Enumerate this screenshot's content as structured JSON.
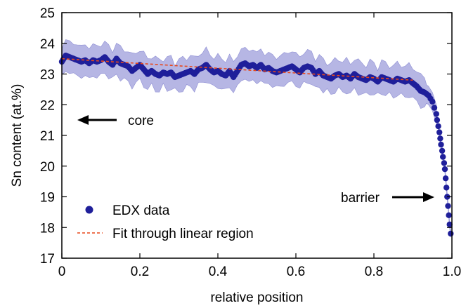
{
  "chart_data": {
    "type": "scatter",
    "title": "",
    "xlabel": "relative position",
    "ylabel": "Sn content (at.%)",
    "xlim": [
      0,
      1
    ],
    "ylim": [
      17,
      25
    ],
    "xticks": [
      "0",
      "0.2",
      "0.4",
      "0.6",
      "0.8",
      "1.0"
    ],
    "xtick_values": [
      0,
      0.2,
      0.4,
      0.6,
      0.8,
      1.0
    ],
    "yticks": [
      "17",
      "18",
      "19",
      "20",
      "21",
      "22",
      "23",
      "24",
      "25"
    ],
    "ytick_values": [
      17,
      18,
      19,
      20,
      21,
      22,
      23,
      24,
      25
    ],
    "grid": false,
    "legend_position": "bottom-left",
    "colors": {
      "points": "#1f1f9a",
      "band": "#9d9ddb",
      "fit": "#e8481c",
      "axes": "#000000"
    },
    "series": [
      {
        "name": "EDX data",
        "style": "points with shaded error band",
        "points": [
          [
            0.0,
            23.4
          ],
          [
            0.01,
            23.6
          ],
          [
            0.02,
            23.55
          ],
          [
            0.03,
            23.5
          ],
          [
            0.04,
            23.45
          ],
          [
            0.05,
            23.4
          ],
          [
            0.06,
            23.45
          ],
          [
            0.07,
            23.35
          ],
          [
            0.08,
            23.45
          ],
          [
            0.09,
            23.4
          ],
          [
            0.1,
            23.45
          ],
          [
            0.11,
            23.55
          ],
          [
            0.12,
            23.4
          ],
          [
            0.13,
            23.3
          ],
          [
            0.14,
            23.5
          ],
          [
            0.15,
            23.35
          ],
          [
            0.16,
            23.3
          ],
          [
            0.17,
            23.25
          ],
          [
            0.18,
            23.1
          ],
          [
            0.19,
            23.2
          ],
          [
            0.2,
            23.3
          ],
          [
            0.21,
            23.15
          ],
          [
            0.22,
            23.0
          ],
          [
            0.23,
            23.1
          ],
          [
            0.24,
            23.0
          ],
          [
            0.25,
            22.95
          ],
          [
            0.26,
            23.05
          ],
          [
            0.27,
            23.0
          ],
          [
            0.28,
            23.05
          ],
          [
            0.29,
            22.9
          ],
          [
            0.3,
            22.95
          ],
          [
            0.31,
            23.0
          ],
          [
            0.32,
            23.05
          ],
          [
            0.33,
            23.1
          ],
          [
            0.34,
            23.0
          ],
          [
            0.35,
            23.15
          ],
          [
            0.36,
            23.2
          ],
          [
            0.37,
            23.3
          ],
          [
            0.38,
            23.15
          ],
          [
            0.39,
            23.05
          ],
          [
            0.4,
            23.1
          ],
          [
            0.41,
            23.0
          ],
          [
            0.42,
            22.95
          ],
          [
            0.43,
            23.1
          ],
          [
            0.44,
            22.9
          ],
          [
            0.45,
            23.1
          ],
          [
            0.46,
            23.3
          ],
          [
            0.47,
            23.35
          ],
          [
            0.48,
            23.25
          ],
          [
            0.49,
            23.3
          ],
          [
            0.5,
            23.2
          ],
          [
            0.51,
            23.3
          ],
          [
            0.52,
            23.15
          ],
          [
            0.53,
            23.2
          ],
          [
            0.54,
            23.1
          ],
          [
            0.55,
            23.05
          ],
          [
            0.56,
            23.1
          ],
          [
            0.57,
            23.15
          ],
          [
            0.58,
            23.2
          ],
          [
            0.59,
            23.25
          ],
          [
            0.6,
            23.15
          ],
          [
            0.61,
            23.05
          ],
          [
            0.62,
            23.2
          ],
          [
            0.63,
            23.25
          ],
          [
            0.64,
            23.2
          ],
          [
            0.65,
            23.0
          ],
          [
            0.66,
            23.1
          ],
          [
            0.67,
            22.95
          ],
          [
            0.68,
            22.9
          ],
          [
            0.69,
            22.85
          ],
          [
            0.7,
            22.95
          ],
          [
            0.71,
            23.0
          ],
          [
            0.72,
            22.9
          ],
          [
            0.73,
            22.95
          ],
          [
            0.74,
            22.85
          ],
          [
            0.75,
            23.0
          ],
          [
            0.76,
            22.9
          ],
          [
            0.77,
            22.85
          ],
          [
            0.78,
            22.8
          ],
          [
            0.79,
            22.9
          ],
          [
            0.8,
            22.85
          ],
          [
            0.81,
            22.75
          ],
          [
            0.82,
            22.9
          ],
          [
            0.83,
            22.85
          ],
          [
            0.84,
            22.8
          ],
          [
            0.85,
            22.75
          ],
          [
            0.86,
            22.85
          ],
          [
            0.87,
            22.8
          ],
          [
            0.88,
            22.75
          ],
          [
            0.89,
            22.8
          ],
          [
            0.9,
            22.7
          ],
          [
            0.91,
            22.6
          ],
          [
            0.92,
            22.45
          ],
          [
            0.93,
            22.4
          ],
          [
            0.935,
            22.35
          ],
          [
            0.94,
            22.3
          ],
          [
            0.945,
            22.2
          ],
          [
            0.95,
            22.1
          ],
          [
            0.955,
            21.9
          ],
          [
            0.96,
            21.7
          ],
          [
            0.962,
            21.5
          ],
          [
            0.965,
            21.3
          ],
          [
            0.968,
            21.1
          ],
          [
            0.97,
            20.9
          ],
          [
            0.972,
            20.7
          ],
          [
            0.975,
            20.5
          ],
          [
            0.977,
            20.3
          ],
          [
            0.98,
            20.1
          ],
          [
            0.982,
            19.9
          ],
          [
            0.984,
            19.6
          ],
          [
            0.986,
            19.3
          ],
          [
            0.988,
            19.0
          ],
          [
            0.99,
            18.7
          ],
          [
            0.992,
            18.4
          ],
          [
            0.994,
            18.1
          ],
          [
            0.997,
            17.8
          ]
        ]
      },
      {
        "name": "Fit through linear region",
        "style": "dashed line",
        "points": [
          [
            0.0,
            23.5
          ],
          [
            0.9,
            22.8
          ]
        ]
      }
    ],
    "annotations": [
      {
        "text": "core",
        "arrow": "left",
        "at": [
          0.12,
          21.55
        ]
      },
      {
        "text": "barrier",
        "arrow": "right",
        "at": [
          0.75,
          19.0
        ]
      }
    ]
  }
}
